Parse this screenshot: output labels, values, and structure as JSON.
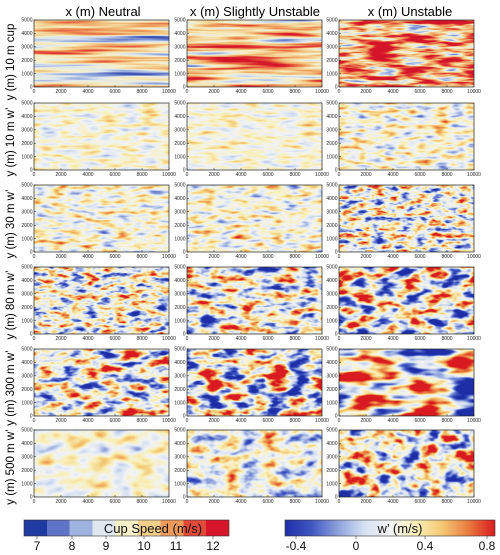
{
  "column_titles": [
    "x (m) Neutral",
    "x (m) Slightly Unstable",
    "x (m) Unstable"
  ],
  "row_labels": [
    "y (m) 10 m cup",
    "y (m) 10 m w’",
    "y (m) 30 m w’",
    "y (m) 80 m w’",
    "y (m) 300 m w’",
    "y (m) 500 m w’"
  ],
  "colorbars": [
    {
      "label": "Cup Speed (m/s)",
      "ticks": [
        "7",
        "8",
        "9",
        "10",
        "11",
        "12"
      ],
      "colors": [
        "#1f3aa0",
        "#5f74c6",
        "#9fb2e0",
        "#dfe8ef",
        "#f7f0c8",
        "#f3cf8e",
        "#ee9a5a",
        "#e44a3a",
        "#d4152a"
      ]
    },
    {
      "label": "w’ (m/s)",
      "ticks": [
        "-0.4",
        "0",
        "0.4",
        "0.8"
      ],
      "colors": [
        "#1e2fa6",
        "#3f56c3",
        "#8c9fdb",
        "#d5e0f1",
        "#f2f4f6",
        "#f9efb7",
        "#f4c873",
        "#ea7a3e",
        "#d91a20"
      ]
    }
  ],
  "chart_data": {
    "type": "heatmap",
    "x_ticks": [
      "0",
      "2000",
      "4000",
      "6000",
      "8000",
      "10000"
    ],
    "y_ticks": [
      "0",
      "1000",
      "2000",
      "3000",
      "4000",
      "5000"
    ],
    "xlim": [
      0,
      10000
    ],
    "ylim": [
      0,
      5000
    ],
    "panels": [
      {
        "row": "10 m cup",
        "column": "Neutral",
        "variable": "Cup Speed (m/s)"
      },
      {
        "row": "10 m cup",
        "column": "Slightly Unstable",
        "variable": "Cup Speed (m/s)"
      },
      {
        "row": "10 m cup",
        "column": "Unstable",
        "variable": "Cup Speed (m/s)"
      },
      {
        "row": "10 m w’",
        "column": "Neutral",
        "variable": "w’ (m/s)"
      },
      {
        "row": "10 m w’",
        "column": "Slightly Unstable",
        "variable": "w’ (m/s)"
      },
      {
        "row": "10 m w’",
        "column": "Unstable",
        "variable": "w’ (m/s)"
      },
      {
        "row": "30 m w’",
        "column": "Neutral",
        "variable": "w’ (m/s)"
      },
      {
        "row": "30 m w’",
        "column": "Slightly Unstable",
        "variable": "w’ (m/s)"
      },
      {
        "row": "30 m w’",
        "column": "Unstable",
        "variable": "w’ (m/s)"
      },
      {
        "row": "80 m w’",
        "column": "Neutral",
        "variable": "w’ (m/s)"
      },
      {
        "row": "80 m w’",
        "column": "Slightly Unstable",
        "variable": "w’ (m/s)"
      },
      {
        "row": "80 m w’",
        "column": "Unstable",
        "variable": "w’ (m/s)"
      },
      {
        "row": "300 m w’",
        "column": "Neutral",
        "variable": "w’ (m/s)"
      },
      {
        "row": "300 m w’",
        "column": "Slightly Unstable",
        "variable": "w’ (m/s)"
      },
      {
        "row": "300 m w’",
        "column": "Unstable",
        "variable": "w’ (m/s)"
      },
      {
        "row": "500 m w’",
        "column": "Neutral",
        "variable": "w’ (m/s)"
      },
      {
        "row": "500 m w’",
        "column": "Slightly Unstable",
        "variable": "w’ (m/s)"
      },
      {
        "row": "500 m w’",
        "column": "Unstable",
        "variable": "w’ (m/s)"
      }
    ]
  }
}
